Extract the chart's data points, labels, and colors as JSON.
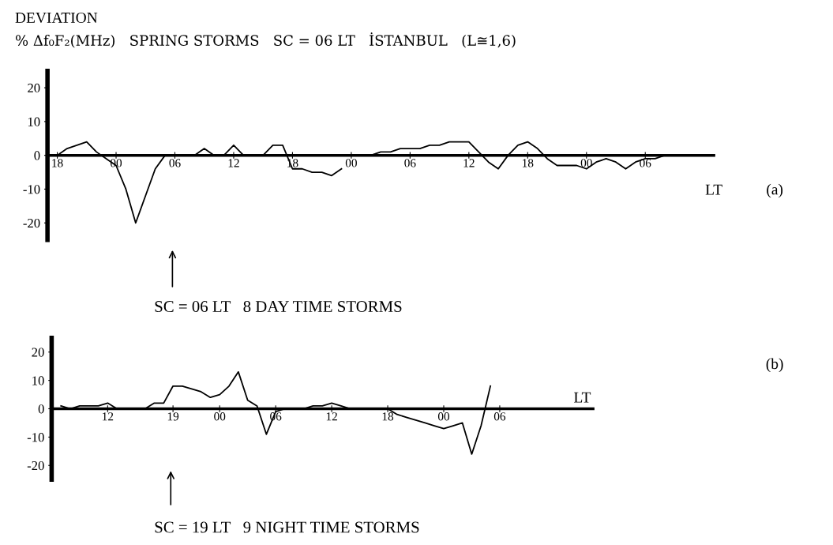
{
  "chart_data": [
    {
      "type": "line",
      "title": "DEVIATION",
      "subtitle": "% Δf₀F₂(MHz)   SPRING STORMS   SC = 06 LT   İSTANBUL   (L≅1,6)",
      "xlabel": "LT",
      "categories": [
        "18",
        null,
        null,
        null,
        null,
        null,
        "00",
        null,
        null,
        null,
        null,
        null,
        "06",
        null,
        null,
        null,
        null,
        null,
        "12",
        null,
        null,
        null,
        null,
        null,
        "18",
        null,
        null,
        null,
        null,
        null,
        "00",
        null,
        null,
        null,
        null,
        null,
        "06",
        null,
        null,
        null,
        null,
        null,
        "12",
        null,
        null,
        null,
        null,
        null,
        "18",
        null,
        null,
        null,
        null,
        null,
        "00",
        null,
        null,
        null,
        null,
        null,
        "06",
        null,
        null,
        null,
        null,
        null,
        null
      ],
      "series": [
        {
          "color": "#000000",
          "values": [
            0,
            2,
            3,
            4,
            1,
            -1,
            -3,
            -10,
            -20,
            -12,
            -4,
            0,
            0,
            0,
            0,
            2,
            0,
            0,
            3,
            0,
            0,
            0,
            3,
            3,
            -4,
            -4,
            -5,
            -5,
            -6,
            -4,
            null,
            0,
            0,
            1,
            1,
            2,
            2,
            2,
            3,
            3,
            4,
            4,
            4,
            1,
            -2,
            -4,
            0,
            3,
            4,
            2,
            -1,
            -3,
            -3,
            -3,
            -4,
            -2,
            -1,
            -2,
            -4,
            -2,
            -1,
            -1,
            0,
            0,
            0,
            0,
            0
          ]
        }
      ],
      "ylim": [
        -25,
        25
      ],
      "yticks": [
        -20,
        -10,
        0,
        10,
        20
      ],
      "annotations": [
        "SC = 06 LT   8 DAY TIME STORMS",
        "(a)"
      ],
      "grid": false,
      "marker": "none",
      "line_style": "solid"
    },
    {
      "type": "line",
      "xlabel": "LT",
      "categories": [
        null,
        null,
        null,
        null,
        null,
        "12",
        null,
        null,
        null,
        null,
        null,
        null,
        "19",
        null,
        null,
        null,
        null,
        "00",
        null,
        null,
        null,
        null,
        null,
        "06",
        null,
        null,
        null,
        null,
        null,
        "12",
        null,
        null,
        null,
        null,
        null,
        "18",
        null,
        null,
        null,
        null,
        null,
        "00",
        null,
        null,
        null,
        null,
        null,
        "06",
        null,
        null,
        null,
        null,
        null,
        null,
        null,
        null,
        null
      ],
      "series": [
        {
          "color": "#000000",
          "values": [
            1,
            0,
            1,
            1,
            1,
            2,
            0,
            0,
            0,
            0,
            2,
            2,
            8,
            8,
            7,
            6,
            4,
            5,
            8,
            13,
            3,
            1,
            -9,
            -1,
            0,
            0,
            0,
            1,
            1,
            2,
            1,
            0,
            0,
            0,
            0,
            0,
            -2,
            -3,
            -4,
            -5,
            -6,
            -7,
            -6,
            -5,
            -16,
            -6,
            8,
            null,
            null,
            null,
            null,
            null,
            null,
            null,
            null,
            null,
            null
          ]
        }
      ],
      "ylim": [
        -25,
        25
      ],
      "yticks": [
        -20,
        -10,
        0,
        10,
        20
      ],
      "annotations": [
        "SC = 19 LT   9 NIGHT TIME STORMS",
        "(b)"
      ],
      "grid": false,
      "marker": "none",
      "line_style": "solid"
    }
  ]
}
